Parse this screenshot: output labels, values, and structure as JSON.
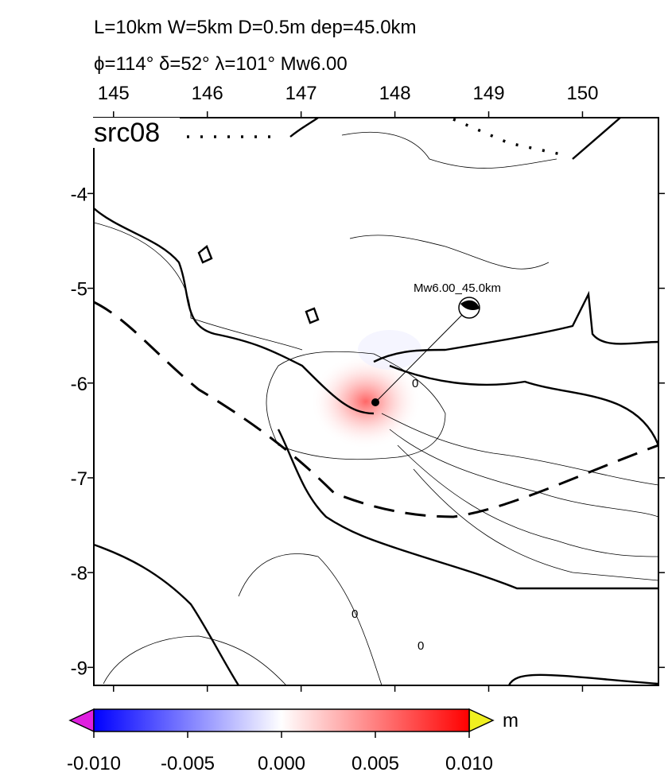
{
  "map": {
    "title_lines": [
      "L=10km W=5km D=0.5m dep=45.0km",
      "ϕ=114° δ=52° λ=101° Mw6.00"
    ],
    "source_label": "src08",
    "event_label": "Mw6.00_45.0km",
    "contour_labels": [
      "0",
      "0",
      "0"
    ],
    "xlim": [
      144.79,
      150.81
    ],
    "ylim": [
      -9.19,
      -3.2
    ],
    "xticks": [
      145,
      146,
      147,
      148,
      149,
      150
    ],
    "yticks": [
      -4,
      -5,
      -6,
      -7,
      -8,
      -9
    ],
    "colorbar": {
      "unit": "m",
      "lim": [
        -0.01,
        0.01
      ],
      "ticks": [
        {
          "value": -0.01,
          "label": "-0.010"
        },
        {
          "value": -0.005,
          "label": "-0.005"
        },
        {
          "value": 0,
          "label": "0.000"
        },
        {
          "value": 0.005,
          "label": "0.005"
        },
        {
          "value": 0.01,
          "label": "0.010"
        }
      ]
    }
  }
}
